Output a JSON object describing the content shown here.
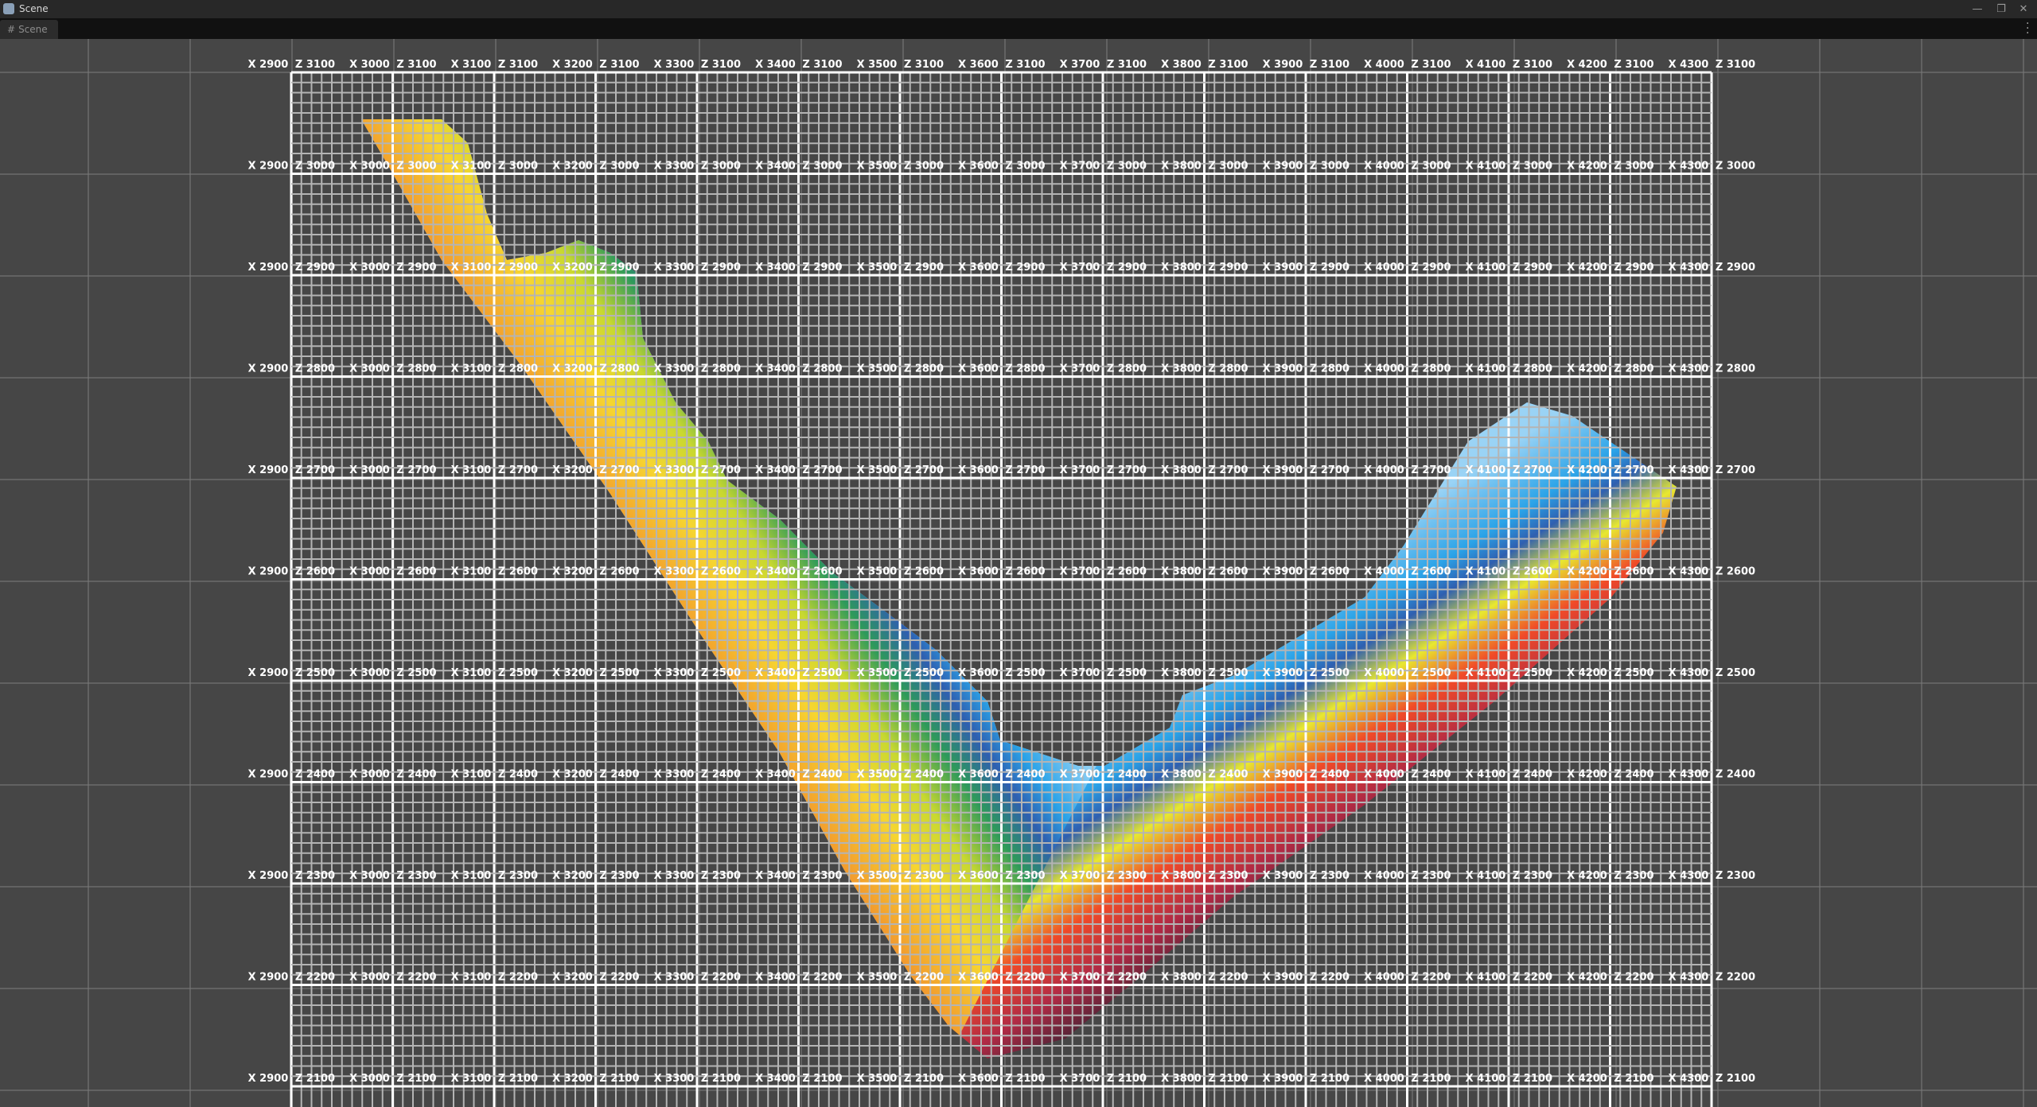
{
  "window": {
    "title": "Scene",
    "icon": "unity-cube-icon",
    "controls": [
      "minimize-icon",
      "restore-icon",
      "close-icon"
    ]
  },
  "tabs": [
    {
      "label": "Scene",
      "icon": "grid-hash-icon"
    }
  ],
  "scene": {
    "x_labels": [
      "X 2900",
      "X 3000",
      "X 3100",
      "X 3200",
      "X 3300",
      "X 3400",
      "X 3500",
      "X 3600",
      "X 3700",
      "X 3800",
      "X 3900",
      "X 4000",
      "X 4100",
      "X 4200",
      "X 4300"
    ],
    "z_rows": [
      "Z 3100",
      "Z 3000",
      "Z 2900",
      "Z 2800",
      "Z 2700",
      "Z 2600",
      "Z 2500",
      "Z 2400",
      "Z 2300",
      "Z 2200",
      "Z 2100"
    ],
    "heatmap_colors": {
      "left_arm": [
        "#f07a2c",
        "#f6d630",
        "#c8d830",
        "#2e9a5a",
        "#2f5fb0",
        "#2aa3e8",
        "#8fd0f5"
      ],
      "right_arm": [
        "#9ad3f5",
        "#2aa3e8",
        "#2f5fb0",
        "#e8e830",
        "#f04a28",
        "#b02a45",
        "#2a2030"
      ]
    },
    "grid_major_color": "#ffffff",
    "grid_minor_color": "#b4b4b4"
  }
}
